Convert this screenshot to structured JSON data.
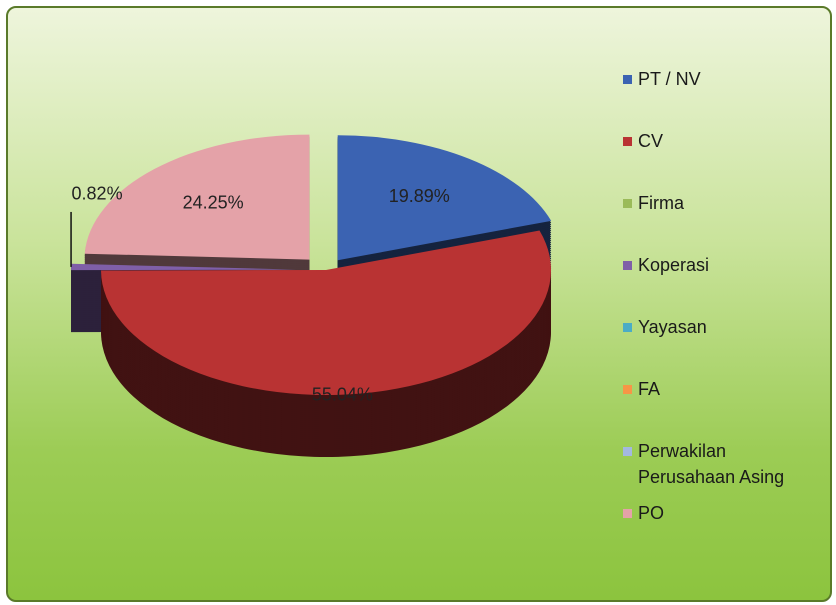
{
  "chart_data": {
    "type": "pie",
    "categories": [
      "PT / NV",
      "CV",
      "Firma",
      "Koperasi",
      "Yayasan",
      "FA",
      "Perwakilan Perusahaan Asing",
      "PO"
    ],
    "values": [
      19.89,
      55.04,
      0,
      0.82,
      0,
      0,
      0,
      24.25
    ],
    "value_labels": [
      "19.89%",
      "55.04%",
      null,
      "0.82%",
      null,
      null,
      null,
      "24.25%"
    ],
    "colors": [
      "#3b63b2",
      "#b93333",
      "#9bbb59",
      "#7f5fa8",
      "#4bacc6",
      "#f79646",
      "#a3b8e0",
      "#e4a2a8"
    ],
    "legend": "right"
  }
}
